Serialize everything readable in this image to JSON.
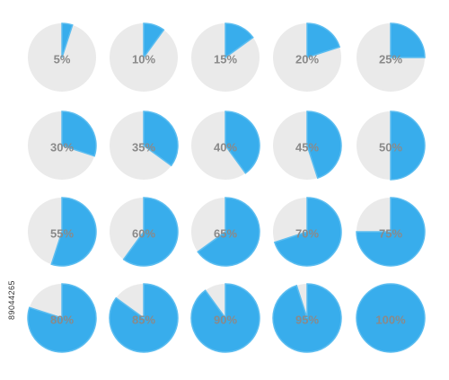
{
  "stock_id": "89044265",
  "colors": {
    "fill": "#38adec",
    "fill_stroke": "#5cbdf0",
    "track": "#eaeaea",
    "label": "#8a8a8a"
  },
  "chart_data": {
    "type": "pie",
    "title": "",
    "unit": "%",
    "values": [
      5,
      10,
      15,
      20,
      25,
      30,
      35,
      40,
      45,
      50,
      55,
      60,
      65,
      70,
      75,
      80,
      85,
      90,
      95,
      100
    ],
    "labels": [
      "5%",
      "10%",
      "15%",
      "20%",
      "25%",
      "30%",
      "35%",
      "40%",
      "45%",
      "50%",
      "55%",
      "60%",
      "65%",
      "70%",
      "75%",
      "80%",
      "85%",
      "90%",
      "95%",
      "100%"
    ],
    "grid": {
      "rows": 4,
      "columns": 5
    }
  }
}
